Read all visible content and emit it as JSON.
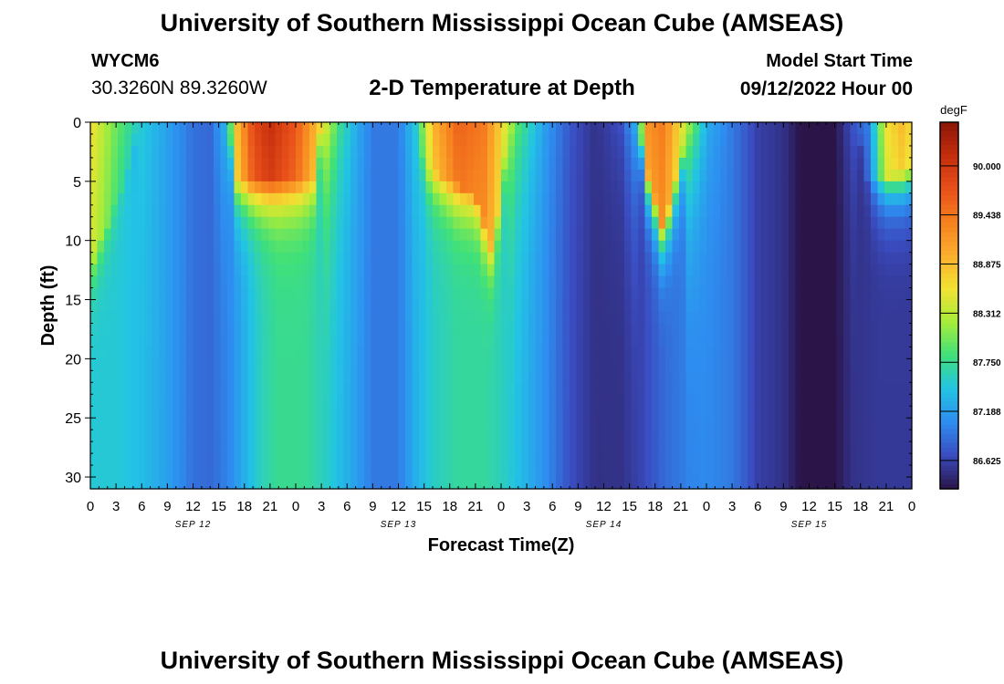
{
  "header": {
    "title": "University of Southern Mississippi Ocean Cube (AMSEAS)",
    "station_id": "WYCM6",
    "coordinates": "30.3260N  89.3260W",
    "plot_title": "2-D Temperature at Depth",
    "model_start_label": "Model Start Time",
    "model_start_value": "09/12/2022 Hour 00"
  },
  "footer": {
    "title_repeat": "University of Southern Mississippi Ocean Cube (AMSEAS)"
  },
  "chart_data": {
    "type": "heatmap",
    "xlabel": "Forecast Time(Z)",
    "ylabel": "Depth (ft)",
    "x_tick_labels": [
      "0",
      "3",
      "6",
      "9",
      "12",
      "15",
      "18",
      "21",
      "0",
      "3",
      "6",
      "9",
      "12",
      "15",
      "18",
      "21",
      "0",
      "3",
      "6",
      "9",
      "12",
      "15",
      "18",
      "21",
      "0",
      "3",
      "6",
      "9",
      "12",
      "15",
      "18",
      "21",
      "0"
    ],
    "date_labels": [
      {
        "label": "SEP 12",
        "hour": 12
      },
      {
        "label": "SEP 13",
        "hour": 36
      },
      {
        "label": "SEP 14",
        "hour": 60
      },
      {
        "label": "SEP 15",
        "hour": 84
      }
    ],
    "x_range_hours": [
      0,
      96
    ],
    "y_ticks": [
      0,
      5,
      10,
      15,
      20,
      25,
      30
    ],
    "y_range_ft": [
      0,
      31
    ],
    "y_inverted": true,
    "colorbar": {
      "unit": "degF",
      "tick_labels": [
        "90.000",
        "89.438",
        "88.875",
        "88.312",
        "87.750",
        "87.188",
        "86.625"
      ],
      "range": [
        86.3,
        90.5
      ],
      "colors": [
        "#2a1448",
        "#3a4cc0",
        "#2e8df0",
        "#22c4e4",
        "#3fe07a",
        "#a6ec3a",
        "#f2e233",
        "#fbae2c",
        "#f6811f",
        "#e8501a",
        "#c42d0c",
        "#8a1606"
      ]
    },
    "surface_temperature_by_hour": [
      {
        "hour": 0,
        "degF": 88.6
      },
      {
        "hour": 3,
        "degF": 88.0
      },
      {
        "hour": 6,
        "degF": 87.5
      },
      {
        "hour": 9,
        "degF": 87.2
      },
      {
        "hour": 12,
        "degF": 86.9
      },
      {
        "hour": 14,
        "degF": 86.85
      },
      {
        "hour": 16,
        "degF": 87.4
      },
      {
        "hour": 17,
        "degF": 88.8
      },
      {
        "hour": 19,
        "degF": 89.8
      },
      {
        "hour": 21,
        "degF": 90.1
      },
      {
        "hour": 24,
        "degF": 89.7
      },
      {
        "hour": 27,
        "degF": 88.7
      },
      {
        "hour": 29,
        "degF": 87.8
      },
      {
        "hour": 31,
        "degF": 87.3
      },
      {
        "hour": 33,
        "degF": 86.95
      },
      {
        "hour": 36,
        "degF": 86.95
      },
      {
        "hour": 38,
        "degF": 87.5
      },
      {
        "hour": 40,
        "degF": 88.9
      },
      {
        "hour": 43,
        "degF": 89.6
      },
      {
        "hour": 46,
        "degF": 89.4
      },
      {
        "hour": 48,
        "degF": 88.7
      },
      {
        "hour": 50,
        "degF": 87.9
      },
      {
        "hour": 53,
        "degF": 87.2
      },
      {
        "hour": 56,
        "degF": 86.75
      },
      {
        "hour": 59,
        "degF": 86.5
      },
      {
        "hour": 62,
        "degF": 86.7
      },
      {
        "hour": 64,
        "degF": 87.4
      },
      {
        "hour": 65,
        "degF": 89.2
      },
      {
        "hour": 67,
        "degF": 89.4
      },
      {
        "hour": 70,
        "degF": 88.2
      },
      {
        "hour": 72,
        "degF": 87.3
      },
      {
        "hour": 75,
        "degF": 86.95
      },
      {
        "hour": 78,
        "degF": 86.6
      },
      {
        "hour": 81,
        "degF": 86.5
      },
      {
        "hour": 83,
        "degF": 86.3
      },
      {
        "hour": 87,
        "degF": 86.3
      },
      {
        "hour": 89,
        "degF": 86.7
      },
      {
        "hour": 91,
        "degF": 87.0
      },
      {
        "hour": 93,
        "degF": 88.6
      },
      {
        "hour": 95,
        "degF": 88.9
      },
      {
        "hour": 96,
        "degF": 88.6
      }
    ],
    "deep_temperature_by_hour": [
      {
        "hour": 0,
        "degF": 87.5
      },
      {
        "hour": 3,
        "degF": 87.5
      },
      {
        "hour": 6,
        "degF": 87.4
      },
      {
        "hour": 9,
        "degF": 87.2
      },
      {
        "hour": 12,
        "degF": 86.9
      },
      {
        "hour": 14,
        "degF": 86.85
      },
      {
        "hour": 16,
        "degF": 87.0
      },
      {
        "hour": 18,
        "degF": 87.3
      },
      {
        "hour": 20,
        "degF": 87.6
      },
      {
        "hour": 22,
        "degF": 87.75
      },
      {
        "hour": 25,
        "degF": 87.75
      },
      {
        "hour": 27,
        "degF": 87.6
      },
      {
        "hour": 29,
        "degF": 87.4
      },
      {
        "hour": 31,
        "degF": 87.2
      },
      {
        "hour": 33,
        "degF": 86.95
      },
      {
        "hour": 36,
        "degF": 86.95
      },
      {
        "hour": 38,
        "degF": 87.3
      },
      {
        "hour": 40,
        "degF": 87.55
      },
      {
        "hour": 43,
        "degF": 87.7
      },
      {
        "hour": 46,
        "degF": 87.7
      },
      {
        "hour": 48,
        "degF": 87.6
      },
      {
        "hour": 50,
        "degF": 87.4
      },
      {
        "hour": 53,
        "degF": 87.1
      },
      {
        "hour": 56,
        "degF": 86.7
      },
      {
        "hour": 59,
        "degF": 86.5
      },
      {
        "hour": 62,
        "degF": 86.5
      },
      {
        "hour": 64,
        "degF": 86.6
      },
      {
        "hour": 67,
        "degF": 86.85
      },
      {
        "hour": 70,
        "degF": 87.0
      },
      {
        "hour": 72,
        "degF": 87.05
      },
      {
        "hour": 75,
        "degF": 86.95
      },
      {
        "hour": 78,
        "degF": 86.6
      },
      {
        "hour": 81,
        "degF": 86.5
      },
      {
        "hour": 83,
        "degF": 86.3
      },
      {
        "hour": 87,
        "degF": 86.3
      },
      {
        "hour": 89,
        "degF": 86.5
      },
      {
        "hour": 92,
        "degF": 86.55
      },
      {
        "hour": 96,
        "degF": 86.55
      }
    ],
    "warm_surface_layer_depth_by_hour": [
      {
        "hour": 0,
        "ft": 12
      },
      {
        "hour": 3,
        "ft": 7
      },
      {
        "hour": 6,
        "ft": 0
      },
      {
        "hour": 16,
        "ft": 0
      },
      {
        "hour": 17,
        "ft": 5
      },
      {
        "hour": 26,
        "ft": 5
      },
      {
        "hour": 27,
        "ft": 0
      },
      {
        "hour": 38,
        "ft": 0
      },
      {
        "hour": 39,
        "ft": 4
      },
      {
        "hour": 45,
        "ft": 6
      },
      {
        "hour": 47,
        "ft": 11
      },
      {
        "hour": 49,
        "ft": 0
      },
      {
        "hour": 64,
        "ft": 0
      },
      {
        "hour": 65,
        "ft": 4
      },
      {
        "hour": 67,
        "ft": 9
      },
      {
        "hour": 70,
        "ft": 0
      },
      {
        "hour": 89,
        "ft": 0
      },
      {
        "hour": 91,
        "ft": 5
      },
      {
        "hour": 96,
        "ft": 4
      }
    ]
  }
}
